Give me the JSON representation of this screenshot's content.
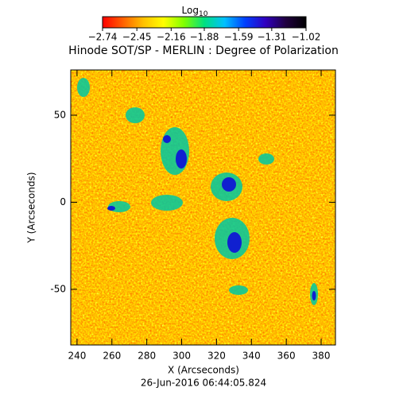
{
  "chart_data": {
    "type": "heatmap",
    "title": "Hinode SOT/SP - MERLIN : Degree of Polarization",
    "subtitle": "26-Jun-2016 06:44:05.824",
    "x_label": "X (Arcseconds)",
    "y_label": "Y (Arcseconds)",
    "xlim": [
      236.4,
      388.2
    ],
    "ylim": [
      -82,
      76
    ],
    "xticks": [
      240,
      260,
      280,
      300,
      320,
      340,
      360,
      380
    ],
    "yticks": [
      -50,
      0,
      50
    ],
    "colorbar": {
      "title": "Log",
      "title_sub": "10",
      "lim": [
        -2.74,
        -1.02
      ],
      "ticks": [
        {
          "value": -2.74,
          "label": "−2.74"
        },
        {
          "value": -2.45,
          "label": "−2.45"
        },
        {
          "value": -2.16,
          "label": "−2.16"
        },
        {
          "value": -1.88,
          "label": "−1.88"
        },
        {
          "value": -1.59,
          "label": "−1.59"
        },
        {
          "value": -1.31,
          "label": "−1.31"
        },
        {
          "value": -1.02,
          "label": "−1.02"
        }
      ],
      "colormap": [
        "#ff0000",
        "#ff6000",
        "#ffc000",
        "#ffff00",
        "#80ff00",
        "#00e080",
        "#00c0ff",
        "#0040ff",
        "#3000c0",
        "#200040",
        "#000000"
      ]
    }
  }
}
